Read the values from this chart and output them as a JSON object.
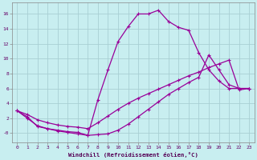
{
  "xlabel": "Windchill (Refroidissement éolien,°C)",
  "bg_color": "#c8eef0",
  "grid_color": "#a8cfd4",
  "line_color": "#990099",
  "xlim": [
    -0.5,
    23.5
  ],
  "ylim": [
    -1.2,
    17.5
  ],
  "xticks": [
    0,
    1,
    2,
    3,
    4,
    5,
    6,
    7,
    8,
    9,
    10,
    11,
    12,
    13,
    14,
    15,
    16,
    17,
    18,
    19,
    20,
    21,
    22,
    23
  ],
  "yticks": [
    0,
    2,
    4,
    6,
    8,
    10,
    12,
    14,
    16
  ],
  "ytick_labels": [
    "-0",
    "2",
    "4",
    "6",
    "8",
    "10",
    "12",
    "14",
    "16"
  ],
  "curve1_x": [
    0,
    1,
    2,
    3,
    4,
    5,
    6,
    7,
    8,
    9,
    10,
    11,
    12,
    13,
    14,
    15,
    16,
    17,
    18,
    19,
    20,
    21,
    22,
    23
  ],
  "curve1_y": [
    3.0,
    2.0,
    1.0,
    0.6,
    0.4,
    0.2,
    0.1,
    -0.3,
    4.5,
    8.5,
    12.3,
    14.3,
    16.0,
    16.0,
    16.5,
    15.0,
    14.2,
    13.8,
    10.8,
    8.5,
    7.0,
    6.0,
    6.0,
    6.0
  ],
  "curve2_x": [
    0,
    1,
    2,
    3,
    4,
    5,
    6,
    7,
    8,
    9,
    10,
    11,
    12,
    13,
    14,
    15,
    16,
    17,
    18,
    19,
    20,
    21,
    22,
    23
  ],
  "curve2_y": [
    3.0,
    2.2,
    0.9,
    0.6,
    0.3,
    0.1,
    -0.1,
    -0.3,
    -0.2,
    -0.1,
    0.4,
    1.2,
    2.2,
    3.2,
    4.2,
    5.2,
    6.0,
    6.8,
    7.5,
    10.5,
    8.5,
    6.5,
    6.0,
    6.0
  ],
  "curve3_x": [
    0,
    1,
    2,
    3,
    4,
    5,
    6,
    7,
    8,
    9,
    10,
    11,
    12,
    13,
    14,
    15,
    16,
    17,
    18,
    19,
    20,
    21,
    22,
    23
  ],
  "curve3_y": [
    3.0,
    2.5,
    1.8,
    1.4,
    1.1,
    0.9,
    0.8,
    0.6,
    1.4,
    2.3,
    3.2,
    4.0,
    4.7,
    5.3,
    5.9,
    6.5,
    7.1,
    7.7,
    8.2,
    8.8,
    9.3,
    9.8,
    5.8,
    6.0
  ]
}
